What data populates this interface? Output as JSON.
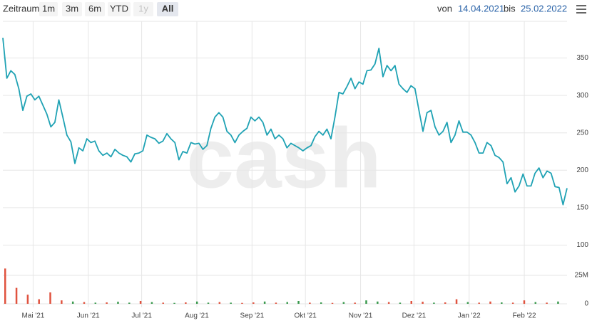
{
  "toolbar": {
    "label": "Zeitraum",
    "buttons": [
      "1m",
      "3m",
      "6m",
      "YTD",
      "1y",
      "All"
    ],
    "active": "All",
    "disabled": [
      "1y"
    ],
    "from_label": "von",
    "from": "14.04.2021",
    "to_label": "bis",
    "to": "25.02.2022"
  },
  "chart_data": {
    "type": "line",
    "watermark": "cash",
    "xlim": [
      "2021-04-14",
      "2022-02-25"
    ],
    "xticks": [
      {
        "value": "2021-05",
        "label": "Mai '21"
      },
      {
        "value": "2021-06",
        "label": "Jun '21"
      },
      {
        "value": "2021-07",
        "label": "Jul '21"
      },
      {
        "value": "2021-08",
        "label": "Aug '21"
      },
      {
        "value": "2021-09",
        "label": "Sep '21"
      },
      {
        "value": "2021-10",
        "label": "Okt '21"
      },
      {
        "value": "2021-11",
        "label": "Nov '21"
      },
      {
        "value": "2021-12",
        "label": "Dez '21"
      },
      {
        "value": "2022-01",
        "label": "Jan '22"
      },
      {
        "value": "2022-02",
        "label": "Feb '22"
      }
    ],
    "ylim": [
      90,
      399
    ],
    "yticks": [
      100,
      150,
      200,
      250,
      300,
      350
    ],
    "grid": true,
    "color": "#1fa2b4",
    "values": [
      377,
      323,
      333,
      328,
      309,
      280,
      299,
      302,
      294,
      299,
      287,
      275,
      258,
      264,
      294,
      271,
      247,
      238,
      209,
      230,
      226,
      242,
      237,
      239,
      226,
      220,
      223,
      218,
      228,
      223,
      220,
      218,
      211,
      222,
      223,
      226,
      247,
      244,
      242,
      236,
      239,
      249,
      242,
      237,
      214,
      225,
      223,
      237,
      235,
      236,
      228,
      233,
      256,
      271,
      277,
      271,
      252,
      247,
      237,
      247,
      252,
      256,
      271,
      266,
      271,
      264,
      247,
      255,
      242,
      247,
      242,
      230,
      236,
      233,
      230,
      226,
      230,
      233,
      245,
      252,
      247,
      255,
      242,
      271,
      304,
      302,
      312,
      323,
      309,
      318,
      315,
      333,
      334,
      342,
      363,
      325,
      340,
      333,
      340,
      315,
      309,
      304,
      313,
      309,
      280,
      252,
      277,
      280,
      258,
      247,
      252,
      264,
      237,
      247,
      266,
      251,
      251,
      247,
      237,
      223,
      223,
      237,
      233,
      220,
      217,
      211,
      182,
      190,
      171,
      179,
      195,
      179,
      179,
      196,
      203,
      190,
      199,
      196,
      178,
      177,
      154,
      176
    ],
    "volume": {
      "ylim": [
        0,
        40000000
      ],
      "yticks": [
        0,
        {
          "value": 25000000,
          "label": "25M"
        }
      ],
      "values": [
        31000000,
        14000000,
        8000000,
        4000000,
        10000000,
        3000000,
        2000000,
        1500000,
        1000000,
        1200000,
        1800000,
        1000000,
        2500000,
        1500000,
        1000000,
        800000,
        1200000,
        2000000,
        1000000,
        1500000,
        1000000,
        800000,
        1200000,
        2000000,
        1000000,
        1500000,
        2500000,
        1000000,
        1200000,
        800000,
        1500000,
        1000000,
        3000000,
        2000000,
        1500000,
        1000000,
        2500000,
        1800000,
        1000000,
        1200000,
        4000000,
        1500000,
        1000000,
        2000000,
        1200000,
        1000000,
        3000000,
        1500000,
        1000000,
        2000000
      ],
      "colors": [
        "#e0533f",
        "#e0533f",
        "#e0533f",
        "#e0533f",
        "#e0533f",
        "#e0533f",
        "#3a9a4e",
        "#e0533f",
        "#3a9a4e",
        "#e0533f",
        "#3a9a4e",
        "#3a9a4e",
        "#e0533f",
        "#3a9a4e",
        "#e0533f",
        "#3a9a4e",
        "#e0533f",
        "#3a9a4e",
        "#3a9a4e",
        "#e0533f",
        "#3a9a4e",
        "#e0533f",
        "#e0533f",
        "#3a9a4e",
        "#e0533f",
        "#3a9a4e",
        "#3a9a4e",
        "#e0533f",
        "#3a9a4e",
        "#e0533f",
        "#3a9a4e",
        "#e0533f",
        "#3a9a4e",
        "#3a9a4e",
        "#e0533f",
        "#3a9a4e",
        "#e0533f",
        "#e0533f",
        "#3a9a4e",
        "#e0533f",
        "#e0533f",
        "#3a9a4e",
        "#e0533f",
        "#e0533f",
        "#3a9a4e",
        "#e0533f",
        "#e0533f",
        "#3a9a4e",
        "#e0533f",
        "#3a9a4e"
      ]
    }
  }
}
